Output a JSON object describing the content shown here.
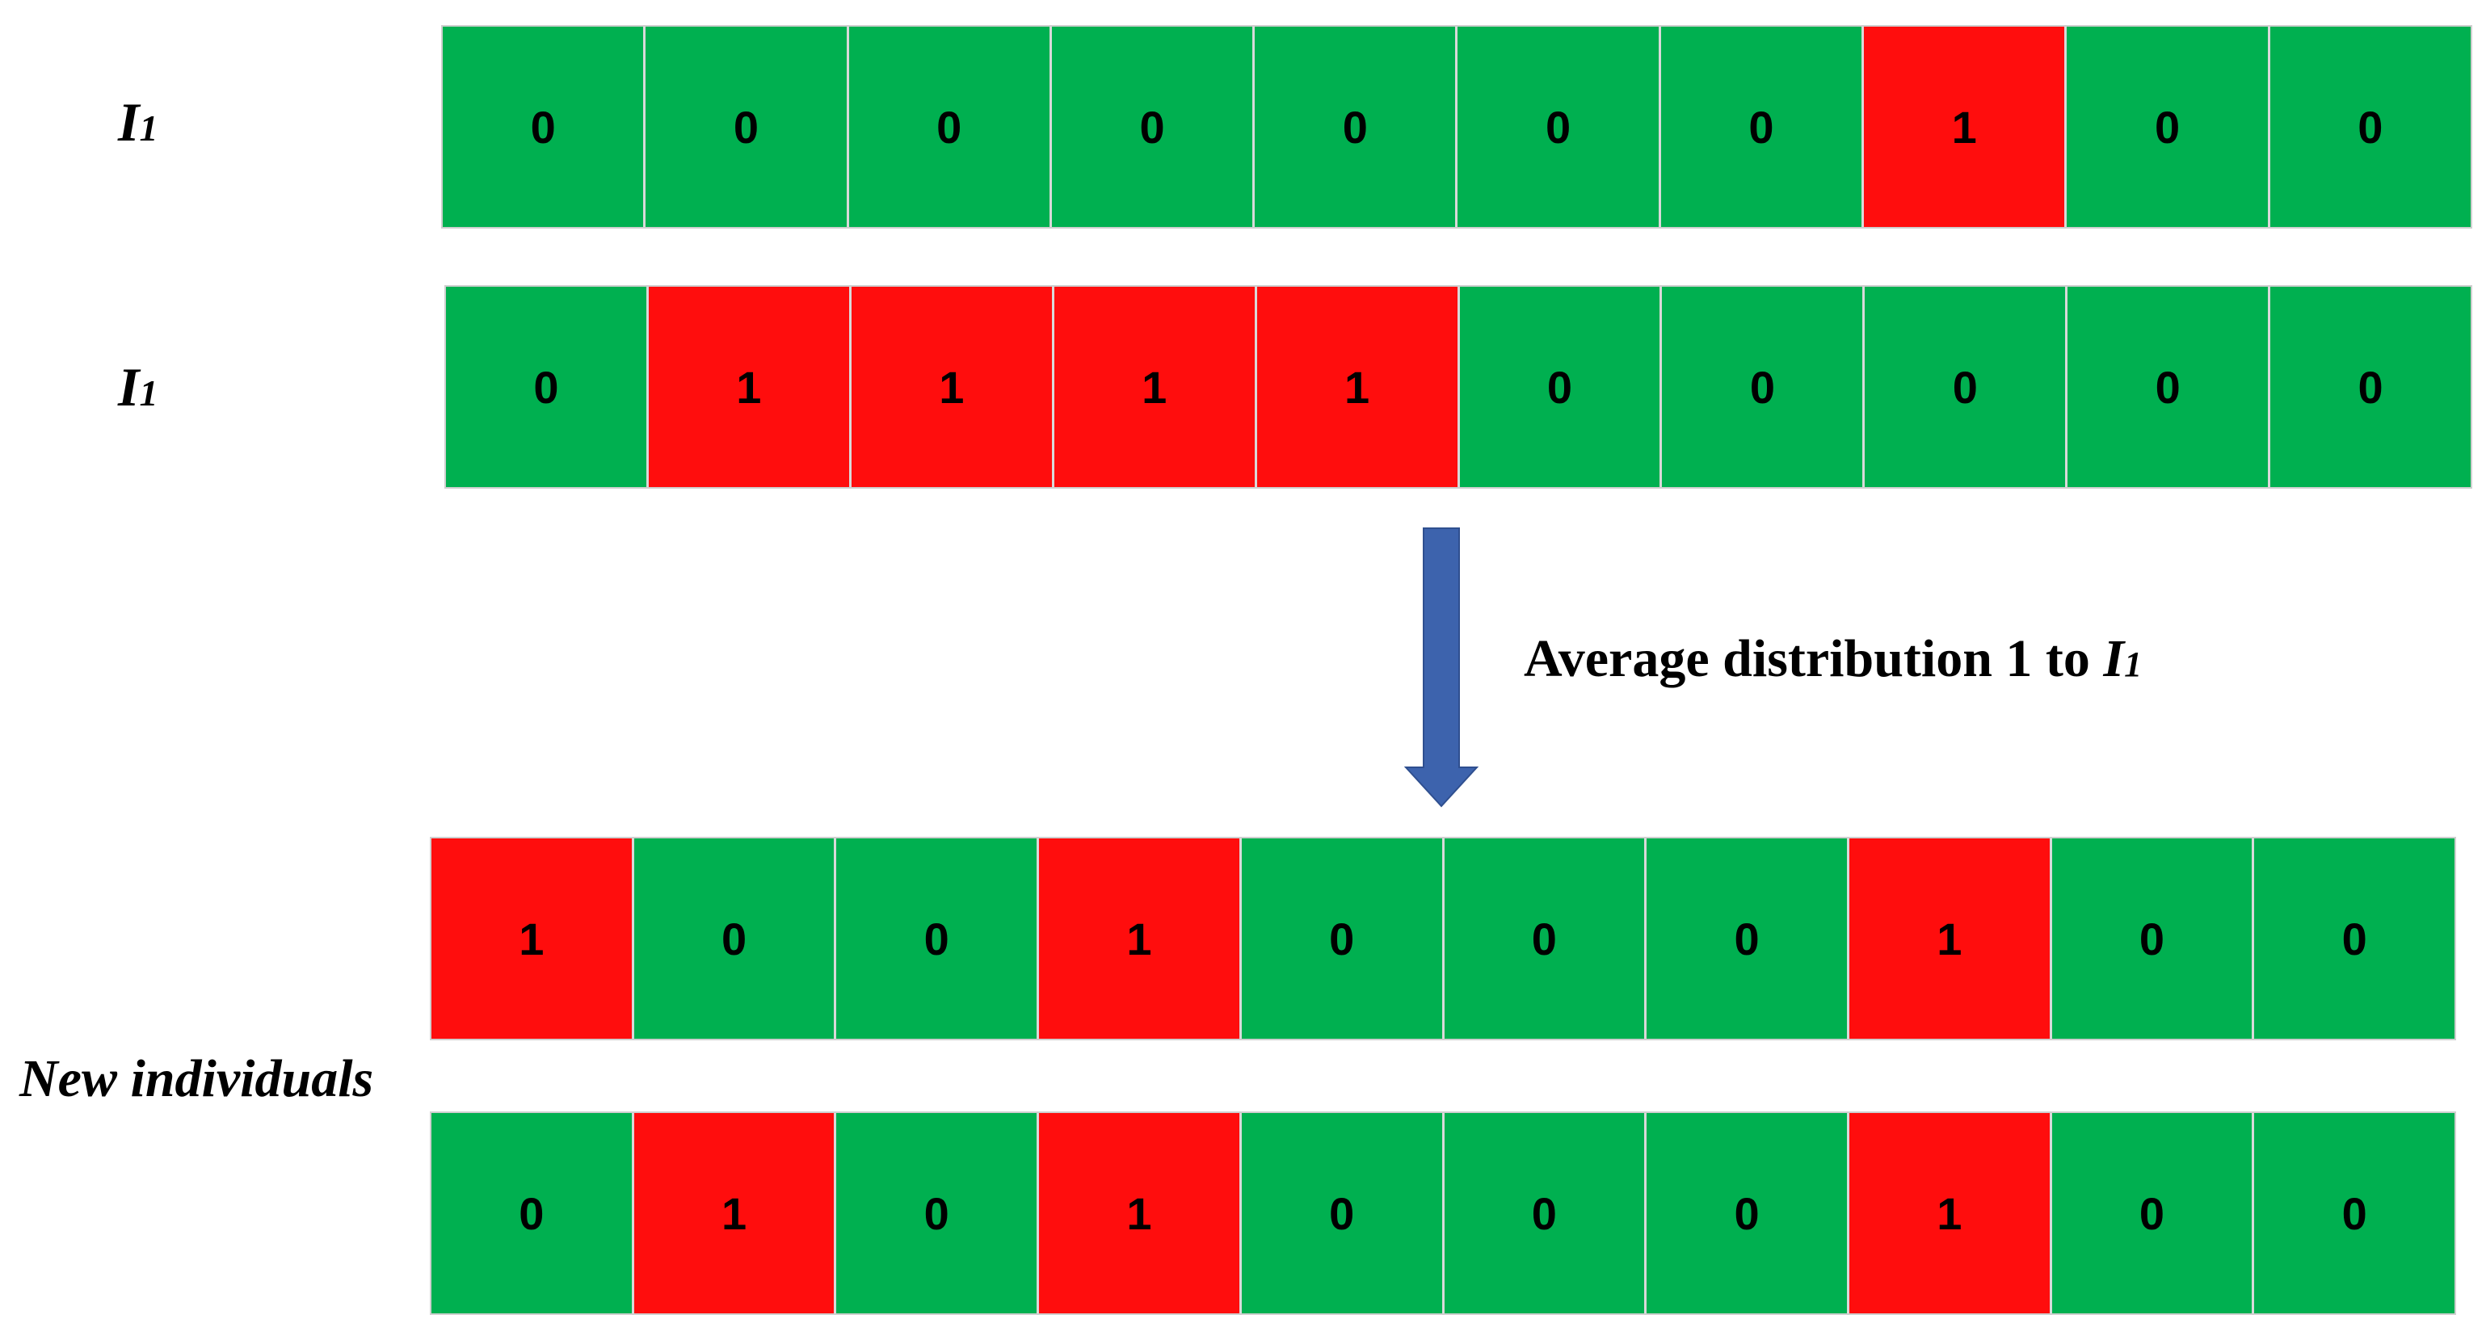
{
  "labels": {
    "i1_letter": "I",
    "i1_sub": "1",
    "i2_letter": "I",
    "i2_sub": "1",
    "new_individuals": "New individuals"
  },
  "rows": {
    "i1": [
      "0",
      "0",
      "0",
      "0",
      "0",
      "0",
      "0",
      "1",
      "0",
      "0"
    ],
    "i2": [
      "0",
      "1",
      "1",
      "1",
      "1",
      "0",
      "0",
      "0",
      "0",
      "0"
    ],
    "new_1": [
      "1",
      "0",
      "0",
      "1",
      "0",
      "0",
      "0",
      "1",
      "0",
      "0"
    ],
    "new_2": [
      "0",
      "1",
      "0",
      "1",
      "0",
      "0",
      "0",
      "1",
      "0",
      "0"
    ]
  },
  "step": {
    "text": "Average distribution 1 to ",
    "letter": "I",
    "sub": "1"
  },
  "colors": {
    "zero": "#00b050",
    "one": "#ff0d0d",
    "arrow": "#3d63ad",
    "arrow_outline": "#2f4f8f"
  }
}
